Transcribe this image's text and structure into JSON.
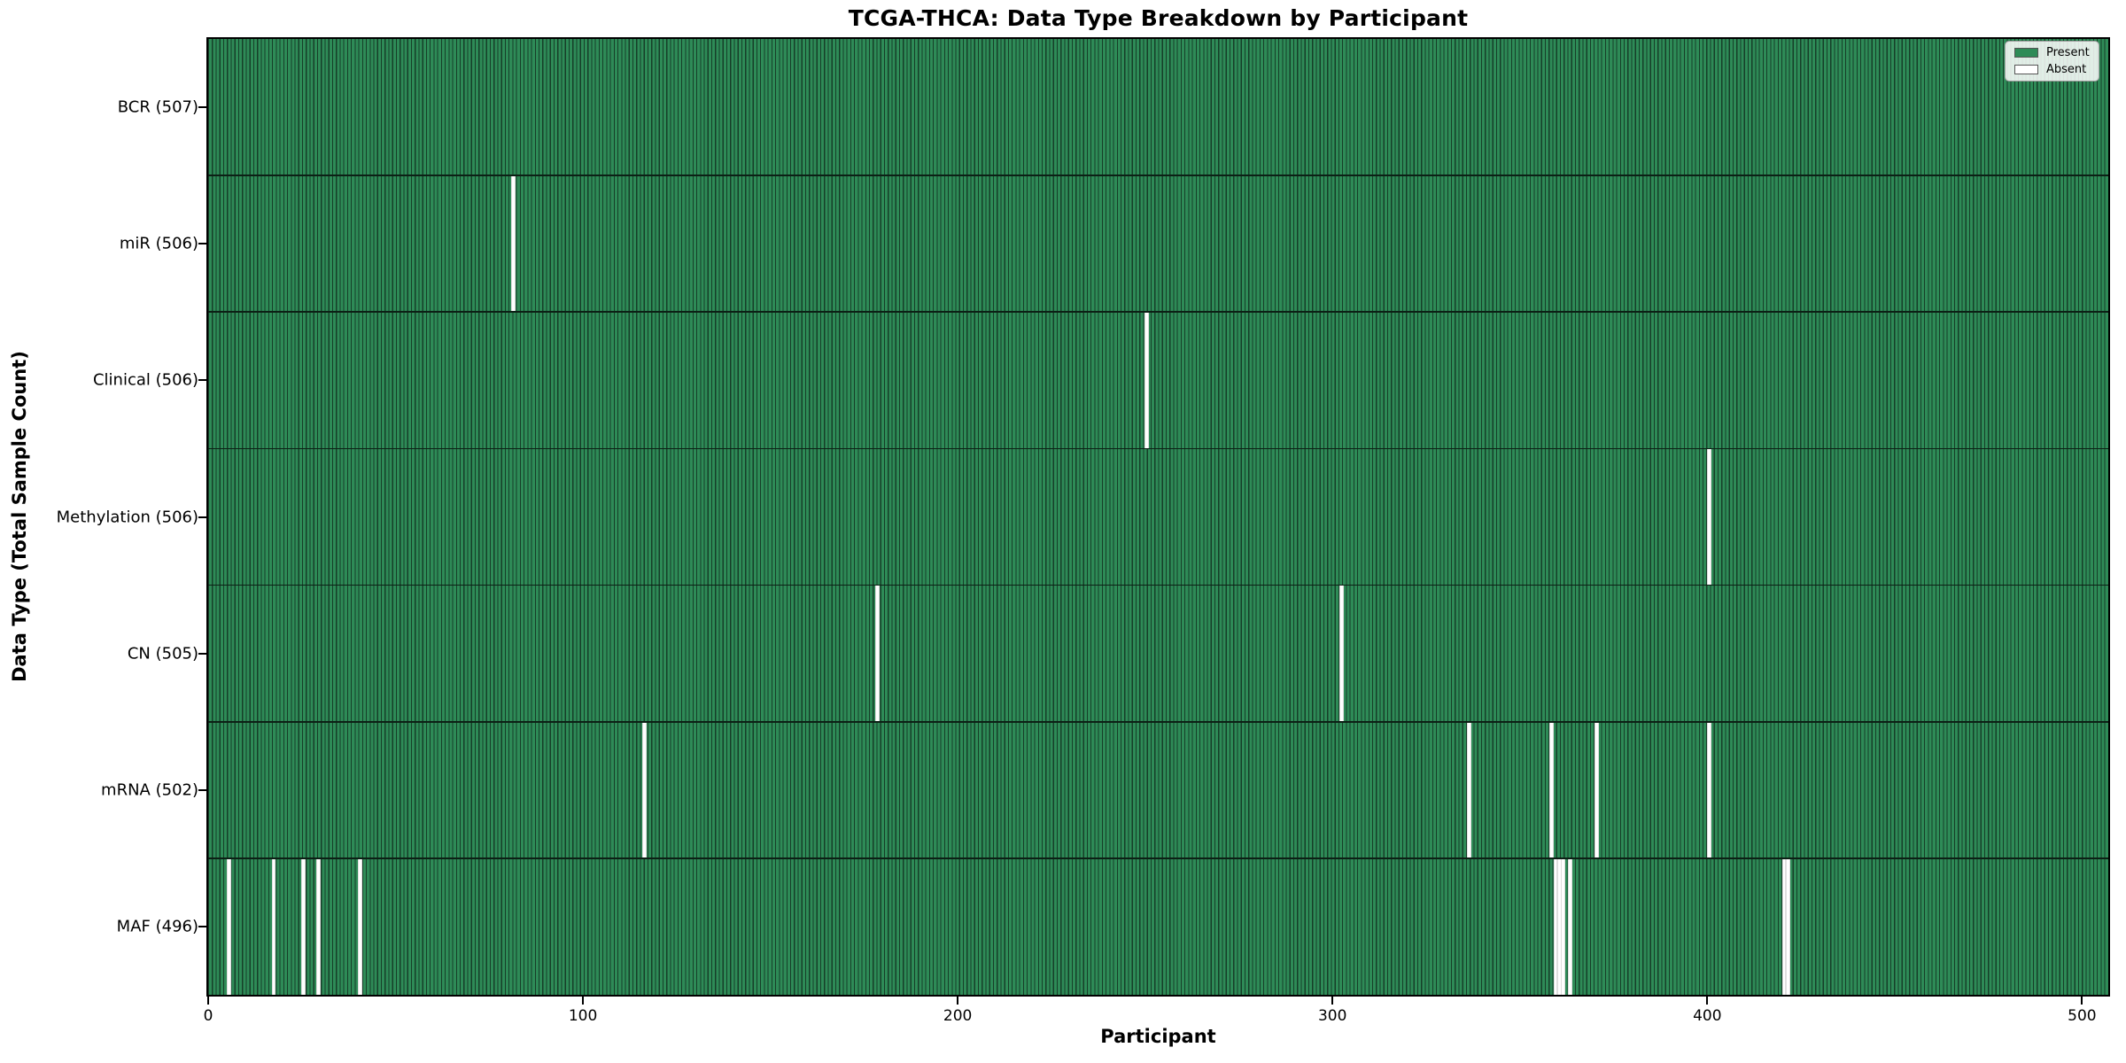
{
  "title": "TCGA-THCA: Data Type Breakdown by Participant",
  "axes": {
    "xlabel": "Participant",
    "ylabel": "Data Type (Total Sample Count)"
  },
  "legend": {
    "items": [
      {
        "label": "Present",
        "color": "#2e8b57"
      },
      {
        "label": "Absent",
        "color": "#ffffff"
      }
    ]
  },
  "colors": {
    "present": "#2e8b57",
    "present_edge": "#163e28",
    "absent": "#ffffff",
    "row_separator": "#0c2015",
    "plot_border": "#000000"
  },
  "chart_data": {
    "type": "heatmap",
    "title": "TCGA-THCA: Data Type Breakdown by Participant",
    "xlabel": "Participant",
    "ylabel": "Data Type (Total Sample Count)",
    "x_ticks": [
      0,
      100,
      200,
      300,
      400,
      500
    ],
    "xlim": [
      0,
      507
    ],
    "n_participants": 507,
    "grid": false,
    "legend_entries": [
      "Present",
      "Absent"
    ],
    "legend_position": "upper right",
    "rows": [
      {
        "label": "BCR (507)",
        "present_count": 507,
        "absent_indices": []
      },
      {
        "label": "miR (506)",
        "present_count": 506,
        "absent_indices": [
          81
        ]
      },
      {
        "label": "Clinical (506)",
        "present_count": 506,
        "absent_indices": [
          250
        ]
      },
      {
        "label": "Methylation (506)",
        "present_count": 506,
        "absent_indices": [
          400
        ]
      },
      {
        "label": "CN (505)",
        "present_count": 505,
        "absent_indices": [
          178,
          302
        ]
      },
      {
        "label": "mRNA (502)",
        "present_count": 502,
        "absent_indices": [
          116,
          336,
          358,
          370,
          400
        ]
      },
      {
        "label": "MAF (496)",
        "present_count": 496,
        "absent_indices": [
          5,
          17,
          25,
          29,
          40,
          359,
          360,
          361,
          363,
          420,
          421
        ]
      }
    ]
  }
}
